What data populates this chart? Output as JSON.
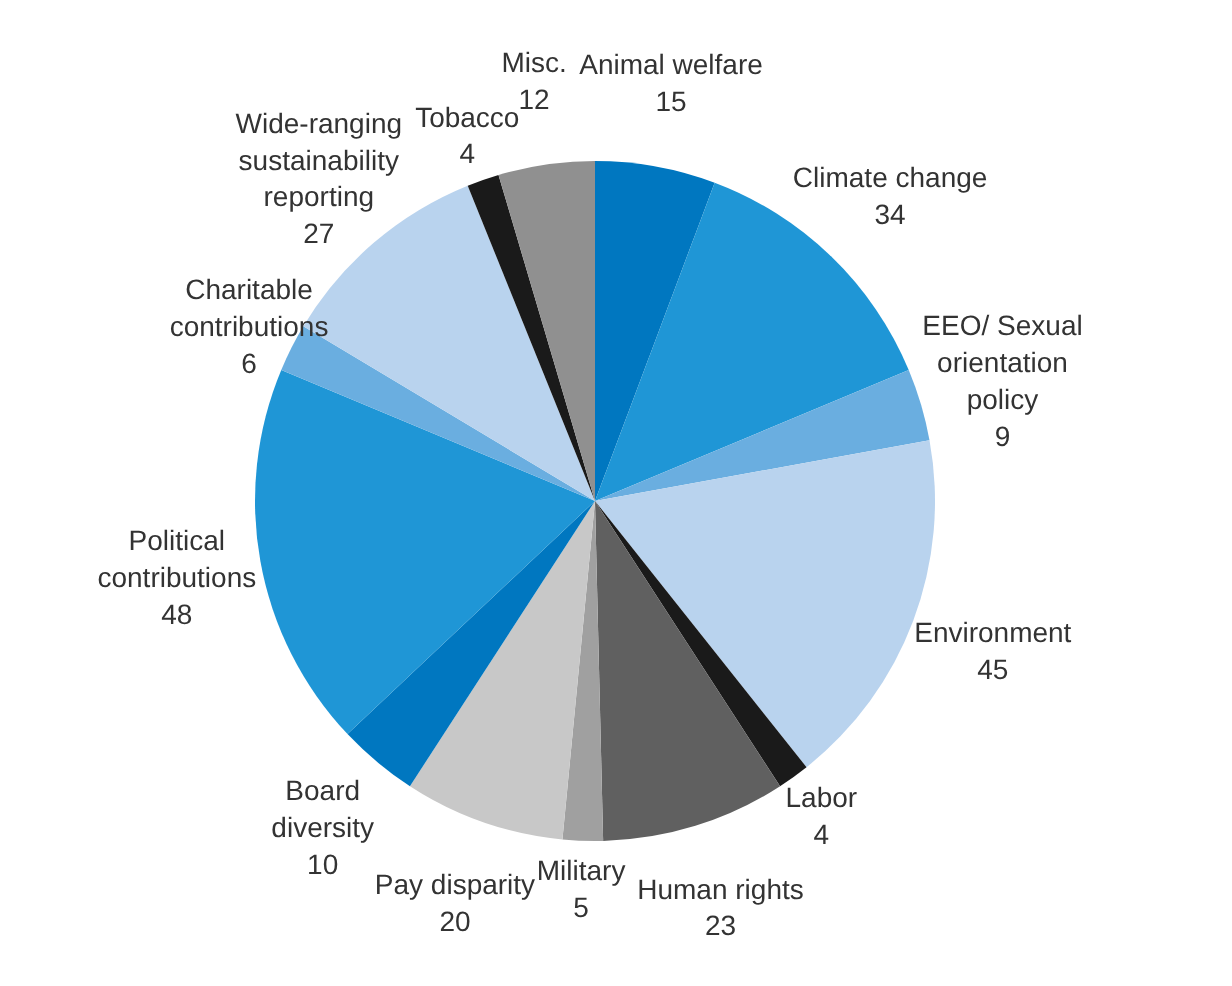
{
  "chart_data": {
    "type": "pie",
    "categories": [
      "Animal welfare",
      "Climate change",
      "EEO/ Sexual orientation policy",
      "Environment",
      "Labor",
      "Human rights",
      "Military",
      "Pay disparity",
      "Board diversity",
      "Political contributions",
      "Charitable contributions",
      "Wide-ranging sustainability reporting",
      "Tobacco",
      "Misc."
    ],
    "values": [
      15,
      34,
      9,
      45,
      4,
      23,
      5,
      20,
      10,
      48,
      6,
      27,
      4,
      12
    ],
    "colors": [
      "#0077c0",
      "#1f96d6",
      "#6aaee0",
      "#b9d3ee",
      "#1a1a1a",
      "#606060",
      "#a0a0a0",
      "#c8c8c8",
      "#0077c0",
      "#1f96d6",
      "#6aaee0",
      "#b9d3ee",
      "#1a1a1a",
      "#909090"
    ],
    "data_labels": true
  }
}
